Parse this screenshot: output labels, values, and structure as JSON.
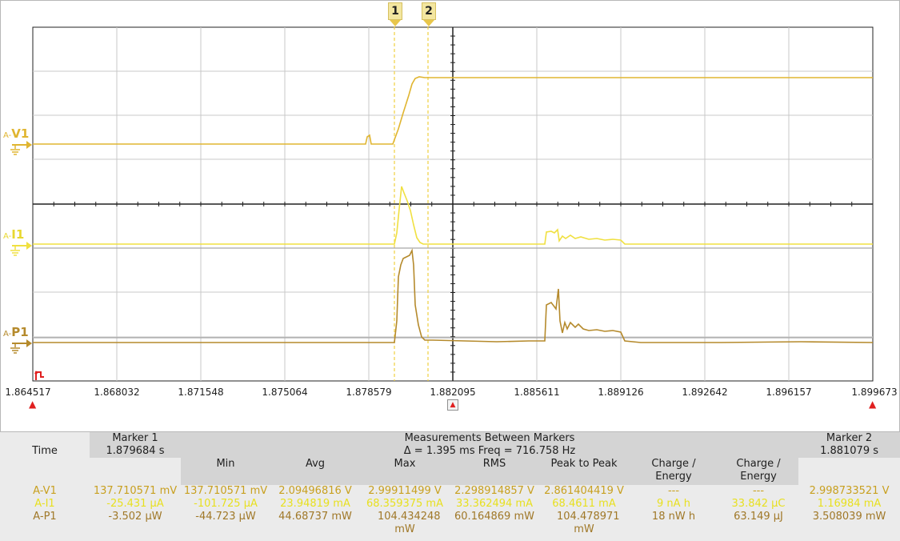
{
  "markers": [
    "1",
    "2"
  ],
  "channels": [
    {
      "prefix": "A-",
      "name": "V1",
      "color": "#e0b530"
    },
    {
      "prefix": "A-",
      "name": "I1",
      "color": "#f0e040"
    },
    {
      "prefix": "A-",
      "name": "P1",
      "color": "#b58a2c"
    }
  ],
  "x_ticks": [
    "1.864517",
    "1.868032",
    "1.871548",
    "1.875064",
    "1.878579",
    "1.882095",
    "1.885611",
    "1.889126",
    "1.892642",
    "1.896157",
    "1.899673"
  ],
  "measurements": {
    "marker1_header": "Marker 1",
    "between_header": "Measurements Between Markers",
    "marker2_header": "Marker 2",
    "time_label": "Time",
    "marker1_time": "1.879684 s",
    "delta_freq": "Δ = 1.395 ms   Freq = 716.758 Hz",
    "marker2_time": "1.881079 s",
    "columns": [
      "Min",
      "Avg",
      "Max",
      "RMS",
      "Peak to Peak",
      "Charge / Energy",
      "Charge / Energy"
    ],
    "rows": [
      {
        "label": "A-V1",
        "marker1": "137.710571 mV",
        "min": "137.710571 mV",
        "avg": "2.09496816 V",
        "max": "2.99911499 V",
        "rms": "2.298914857 V",
        "p2p": "2.861404419 V",
        "ce1": "---",
        "ce2": "---",
        "marker2": "2.998733521 V"
      },
      {
        "label": "A-I1",
        "marker1": "-25.431 µA",
        "min": "-101.725 µA",
        "avg": "23.94819 mA",
        "max": "68.359375 mA",
        "rms": "33.362494 mA",
        "p2p": "68.4611 mA",
        "ce1": "9 nA h",
        "ce2": "33.842 µC",
        "marker2": "1.16984 mA"
      },
      {
        "label": "A-P1",
        "marker1": "-3.502 µW",
        "min": "-44.723 µW",
        "avg": "44.68737 mW",
        "max": "104.434248 mW",
        "rms": "60.164869 mW",
        "p2p": "104.478971 mW",
        "ce1": "18 nW h",
        "ce2": "63.149 µJ",
        "marker2": "3.508039 mW"
      }
    ]
  }
}
